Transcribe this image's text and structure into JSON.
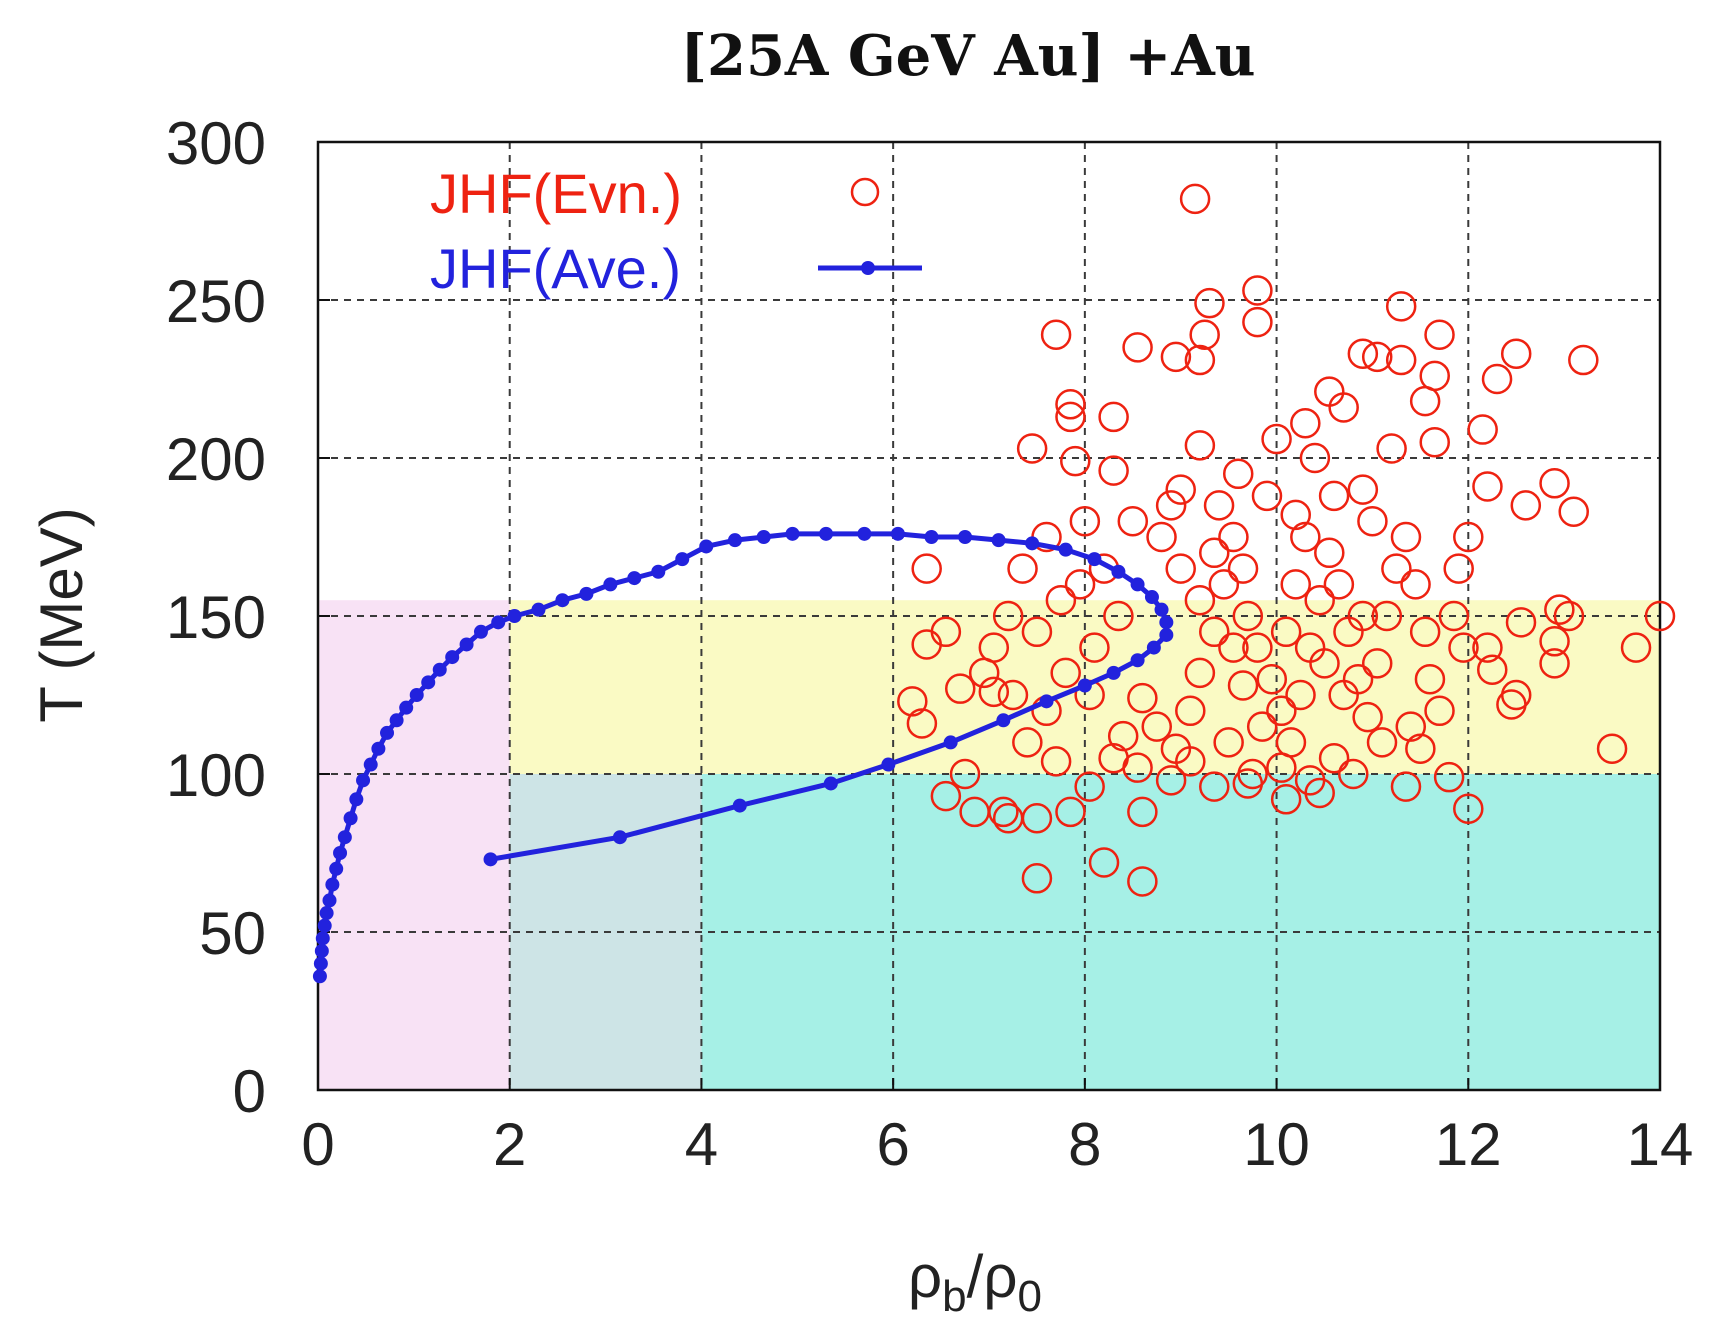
{
  "chart_data": {
    "type": "scatter",
    "title": "[25A GeV Au] +Au",
    "xlabel": {
      "base": "ρ",
      "sub1": "b",
      "sep": "/ρ",
      "sub2": "0"
    },
    "ylabel": "T (MeV)",
    "xlim": [
      0,
      14
    ],
    "ylim": [
      0,
      300
    ],
    "xticks": [
      "0",
      "2",
      "4",
      "6",
      "8",
      "10",
      "12",
      "14"
    ],
    "yticks": [
      "0",
      "50",
      "100",
      "150",
      "200",
      "250",
      "300"
    ],
    "grid": true,
    "legend_position": "top-left",
    "colors": {
      "events": "#ee2211",
      "average": "#2222dd",
      "region_hadron_low": "#f8e2f5",
      "region_mixed": "#fafac4",
      "region_qgp_low": "#a6f0e6",
      "region_transition_low": "#cde4e6"
    },
    "shaded_regions": [
      {
        "name": "pink-region",
        "x": [
          0,
          2
        ],
        "y": [
          0,
          155
        ]
      },
      {
        "name": "yellow-band",
        "x": [
          2,
          14
        ],
        "y": [
          100,
          155
        ]
      },
      {
        "name": "cyan-region",
        "x": [
          4,
          14
        ],
        "y": [
          0,
          100
        ]
      },
      {
        "name": "blue-gray-region",
        "x": [
          2,
          4
        ],
        "y": [
          0,
          100
        ]
      }
    ],
    "series": [
      {
        "name": "JHF(Evn.)",
        "marker": "open-circle",
        "points": [
          [
            9.15,
            282
          ],
          [
            9.8,
            253
          ],
          [
            9.8,
            243
          ],
          [
            9.3,
            249
          ],
          [
            9.25,
            239
          ],
          [
            7.7,
            239
          ],
          [
            8.55,
            235
          ],
          [
            8.95,
            232
          ],
          [
            9.2,
            231
          ],
          [
            11.3,
            248
          ],
          [
            11.7,
            239
          ],
          [
            10.9,
            233
          ],
          [
            11.05,
            232
          ],
          [
            11.3,
            231
          ],
          [
            12.5,
            233
          ],
          [
            13.2,
            231
          ],
          [
            12.3,
            225
          ],
          [
            11.65,
            226
          ],
          [
            10.55,
            221
          ],
          [
            10.7,
            216
          ],
          [
            11.55,
            218
          ],
          [
            12.15,
            209
          ],
          [
            7.85,
            217
          ],
          [
            7.85,
            213
          ],
          [
            8.3,
            213
          ],
          [
            9.2,
            204
          ],
          [
            10.0,
            206
          ],
          [
            10.3,
            211
          ],
          [
            11.2,
            203
          ],
          [
            11.65,
            205
          ],
          [
            7.45,
            203
          ],
          [
            7.9,
            199
          ],
          [
            8.3,
            196
          ],
          [
            12.2,
            191
          ],
          [
            12.9,
            192
          ],
          [
            13.1,
            183
          ],
          [
            12.6,
            185
          ],
          [
            6.35,
            165
          ],
          [
            6.55,
            145
          ],
          [
            6.35,
            141
          ],
          [
            6.2,
            123
          ],
          [
            6.3,
            116
          ],
          [
            6.7,
            127
          ],
          [
            7.05,
            126
          ],
          [
            6.75,
            100
          ],
          [
            6.85,
            88
          ],
          [
            6.55,
            93
          ],
          [
            7.15,
            88
          ],
          [
            7.2,
            86
          ],
          [
            7.5,
            86
          ],
          [
            7.85,
            88
          ],
          [
            7.5,
            67
          ],
          [
            8.2,
            72
          ],
          [
            8.6,
            66
          ],
          [
            8.6,
            88
          ],
          [
            12.0,
            89
          ],
          [
            11.35,
            96
          ],
          [
            11.8,
            99
          ],
          [
            10.45,
            94
          ],
          [
            10.1,
            92
          ],
          [
            9.7,
            97
          ],
          [
            9.35,
            96
          ],
          [
            12.5,
            125
          ],
          [
            12.45,
            122
          ],
          [
            12.9,
            135
          ],
          [
            12.9,
            142
          ],
          [
            12.95,
            152
          ],
          [
            13.05,
            150
          ],
          [
            13.75,
            140
          ],
          [
            13.5,
            108
          ],
          [
            14.0,
            150
          ],
          [
            12.55,
            148
          ],
          [
            12.2,
            140
          ],
          [
            12.25,
            133
          ],
          [
            7.95,
            160
          ],
          [
            8.2,
            165
          ],
          [
            8.35,
            150
          ],
          [
            8.1,
            140
          ],
          [
            7.8,
            132
          ],
          [
            7.6,
            120
          ],
          [
            7.4,
            110
          ],
          [
            7.7,
            104
          ],
          [
            8.05,
            96
          ],
          [
            8.4,
            112
          ],
          [
            8.6,
            124
          ],
          [
            8.55,
            102
          ],
          [
            8.75,
            115
          ],
          [
            8.95,
            108
          ],
          [
            9.1,
            120
          ],
          [
            9.2,
            132
          ],
          [
            9.35,
            145
          ],
          [
            9.45,
            160
          ],
          [
            9.55,
            175
          ],
          [
            9.65,
            165
          ],
          [
            9.7,
            150
          ],
          [
            9.8,
            140
          ],
          [
            9.95,
            130
          ],
          [
            10.05,
            120
          ],
          [
            10.15,
            110
          ],
          [
            10.25,
            125
          ],
          [
            10.35,
            140
          ],
          [
            10.45,
            155
          ],
          [
            10.55,
            170
          ],
          [
            10.65,
            160
          ],
          [
            10.75,
            145
          ],
          [
            10.85,
            130
          ],
          [
            10.95,
            118
          ],
          [
            11.05,
            135
          ],
          [
            11.15,
            150
          ],
          [
            11.25,
            165
          ],
          [
            11.35,
            175
          ],
          [
            11.45,
            160
          ],
          [
            11.55,
            145
          ],
          [
            11.6,
            130
          ],
          [
            11.7,
            120
          ],
          [
            11.85,
            150
          ],
          [
            11.9,
            165
          ],
          [
            12.0,
            175
          ],
          [
            11.95,
            140
          ],
          [
            8.8,
            175
          ],
          [
            8.9,
            185
          ],
          [
            9.0,
            190
          ],
          [
            9.4,
            185
          ],
          [
            9.6,
            195
          ],
          [
            9.9,
            188
          ],
          [
            10.2,
            182
          ],
          [
            10.6,
            188
          ],
          [
            10.9,
            190
          ],
          [
            11.0,
            180
          ],
          [
            10.4,
            200
          ],
          [
            8.5,
            180
          ],
          [
            8.0,
            180
          ],
          [
            7.6,
            175
          ],
          [
            7.35,
            165
          ],
          [
            7.2,
            150
          ],
          [
            7.05,
            140
          ],
          [
            6.95,
            132
          ],
          [
            7.25,
            125
          ],
          [
            7.5,
            145
          ],
          [
            7.75,
            155
          ],
          [
            8.05,
            125
          ],
          [
            8.3,
            105
          ],
          [
            8.9,
            98
          ],
          [
            9.1,
            104
          ],
          [
            9.5,
            110
          ],
          [
            9.75,
            100
          ],
          [
            10.05,
            102
          ],
          [
            10.35,
            98
          ],
          [
            10.6,
            105
          ],
          [
            10.8,
            100
          ],
          [
            11.1,
            110
          ],
          [
            11.4,
            115
          ],
          [
            11.5,
            108
          ],
          [
            9.0,
            165
          ],
          [
            9.2,
            155
          ],
          [
            9.35,
            170
          ],
          [
            9.55,
            140
          ],
          [
            9.65,
            128
          ],
          [
            9.85,
            115
          ],
          [
            10.1,
            145
          ],
          [
            10.2,
            160
          ],
          [
            10.3,
            175
          ],
          [
            10.5,
            135
          ],
          [
            10.7,
            125
          ],
          [
            10.9,
            150
          ]
        ]
      },
      {
        "name": "JHF(Ave.)",
        "marker": "line-with-dots",
        "points": [
          [
            0.02,
            36
          ],
          [
            0.03,
            40
          ],
          [
            0.04,
            44
          ],
          [
            0.05,
            48
          ],
          [
            0.07,
            52
          ],
          [
            0.09,
            56
          ],
          [
            0.12,
            60
          ],
          [
            0.15,
            65
          ],
          [
            0.19,
            70
          ],
          [
            0.23,
            75
          ],
          [
            0.28,
            80
          ],
          [
            0.34,
            86
          ],
          [
            0.4,
            92
          ],
          [
            0.47,
            98
          ],
          [
            0.55,
            103
          ],
          [
            0.63,
            108
          ],
          [
            0.72,
            113
          ],
          [
            0.82,
            117
          ],
          [
            0.92,
            121
          ],
          [
            1.03,
            125
          ],
          [
            1.15,
            129
          ],
          [
            1.27,
            133
          ],
          [
            1.4,
            137
          ],
          [
            1.55,
            141
          ],
          [
            1.7,
            145
          ],
          [
            1.88,
            148
          ],
          [
            2.05,
            150
          ],
          [
            2.3,
            152
          ],
          [
            2.55,
            155
          ],
          [
            2.8,
            157
          ],
          [
            3.05,
            160
          ],
          [
            3.3,
            162
          ],
          [
            3.55,
            164
          ],
          [
            3.8,
            168
          ],
          [
            4.05,
            172
          ],
          [
            4.35,
            174
          ],
          [
            4.65,
            175
          ],
          [
            4.95,
            176
          ],
          [
            5.3,
            176
          ],
          [
            5.7,
            176
          ],
          [
            6.05,
            176
          ],
          [
            6.4,
            175
          ],
          [
            6.75,
            175
          ],
          [
            7.1,
            174
          ],
          [
            7.45,
            173
          ],
          [
            7.8,
            171
          ],
          [
            8.1,
            168
          ],
          [
            8.35,
            164
          ],
          [
            8.55,
            160
          ],
          [
            8.7,
            156
          ],
          [
            8.8,
            152
          ],
          [
            8.85,
            148
          ],
          [
            8.85,
            144
          ],
          [
            8.72,
            140
          ],
          [
            8.55,
            136
          ],
          [
            8.3,
            132
          ],
          [
            8.0,
            128
          ],
          [
            7.6,
            123
          ],
          [
            7.15,
            117
          ],
          [
            6.6,
            110
          ],
          [
            5.95,
            103
          ],
          [
            5.35,
            97
          ],
          [
            4.4,
            90
          ],
          [
            3.15,
            80
          ],
          [
            1.8,
            73
          ]
        ]
      }
    ]
  }
}
